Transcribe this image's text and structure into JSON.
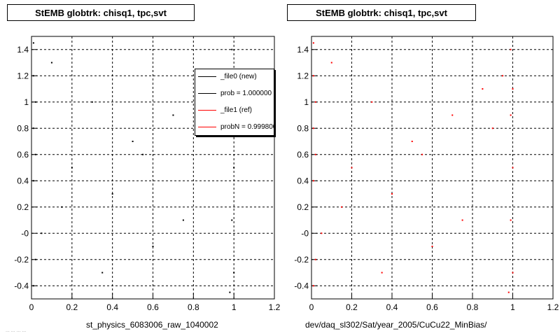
{
  "panels": [
    {
      "title": "StEMB globtrk: chisq1, tpc,svt",
      "xlabel": "st_physics_6083006_raw_1040002",
      "point_color": "#000000"
    },
    {
      "title": "StEMB globtrk: chisq1, tpc,svt",
      "xlabel": "dev/daq_sl302/Sat/year_2005/CuCu22_MinBias/",
      "point_color": "#ff0000"
    }
  ],
  "legend": {
    "items": [
      {
        "label": "_file0 (new)",
        "color": "#000000"
      },
      {
        "label": "prob = 1.000000",
        "color": "#000000"
      },
      {
        "label": "_file1 (ref)",
        "color": "#ff0000"
      },
      {
        "label": "probN = 0.999800",
        "color": "#ff0000"
      }
    ]
  },
  "footnote": "... ... ... ...",
  "chart_data": [
    {
      "type": "scatter",
      "title": "StEMB globtrk: chisq1, tpc,svt",
      "xlabel": "st_physics_6083006_raw_1040002",
      "ylabel": "",
      "xlim": [
        0,
        1.2
      ],
      "ylim": [
        -0.5,
        1.5
      ],
      "xticks": [
        "0",
        "0.2",
        "0.4",
        "0.6",
        "0.8",
        "1",
        "1.2"
      ],
      "yticks": [
        "-0.4",
        "-0.2",
        "-0",
        "0.2",
        "0.4",
        "0.6",
        "0.8",
        "1",
        "1.2",
        "1.4"
      ],
      "grid": true,
      "legend_position": "top-right",
      "series": [
        {
          "name": "_file0 (new)",
          "color": "#000000",
          "x": [
            0.01,
            0.01,
            0.02,
            0.01,
            0.02,
            0.01,
            0.02,
            0.01,
            0.99,
            1.0,
            0.99,
            1.0,
            0.99,
            1.0,
            0.98,
            0.1,
            0.3,
            0.5,
            0.7,
            0.85,
            0.2,
            0.4,
            0.6,
            0.9,
            0.15,
            0.35,
            0.55,
            0.75,
            0.95,
            0.05
          ],
          "y": [
            1.45,
            1.2,
            1.0,
            0.8,
            0.6,
            0.4,
            -0.2,
            -0.4,
            1.4,
            1.1,
            0.9,
            0.5,
            0.1,
            -0.3,
            -0.45,
            1.3,
            1.0,
            0.7,
            0.9,
            1.1,
            0.5,
            0.3,
            -0.1,
            0.8,
            0.2,
            -0.3,
            0.6,
            0.1,
            1.2,
            0.0
          ]
        }
      ]
    },
    {
      "type": "scatter",
      "title": "StEMB globtrk: chisq1, tpc,svt",
      "xlabel": "dev/daq_sl302/Sat/year_2005/CuCu22_MinBias/",
      "ylabel": "",
      "xlim": [
        0,
        1.2
      ],
      "ylim": [
        -0.5,
        1.5
      ],
      "xticks": [
        "0",
        "0.2",
        "0.4",
        "0.6",
        "0.8",
        "1",
        "1.2"
      ],
      "yticks": [
        "-0.4",
        "-0.2",
        "-0",
        "0.2",
        "0.4",
        "0.6",
        "0.8",
        "1",
        "1.2",
        "1.4"
      ],
      "grid": true,
      "series": [
        {
          "name": "_file1 (ref)",
          "color": "#ff0000",
          "x": [
            0.01,
            0.01,
            0.02,
            0.01,
            0.02,
            0.01,
            0.02,
            0.01,
            0.99,
            1.0,
            0.99,
            1.0,
            0.99,
            1.0,
            0.98,
            0.1,
            0.3,
            0.5,
            0.7,
            0.85,
            0.2,
            0.4,
            0.6,
            0.9,
            0.15,
            0.35,
            0.55,
            0.75,
            0.95,
            0.05
          ],
          "y": [
            1.45,
            1.2,
            1.0,
            0.8,
            0.6,
            0.4,
            -0.2,
            -0.4,
            1.4,
            1.1,
            0.9,
            0.5,
            0.1,
            -0.3,
            -0.45,
            1.3,
            1.0,
            0.7,
            0.9,
            1.1,
            0.5,
            0.3,
            -0.1,
            0.8,
            0.2,
            -0.3,
            0.6,
            0.1,
            1.2,
            0.0
          ]
        }
      ]
    }
  ]
}
